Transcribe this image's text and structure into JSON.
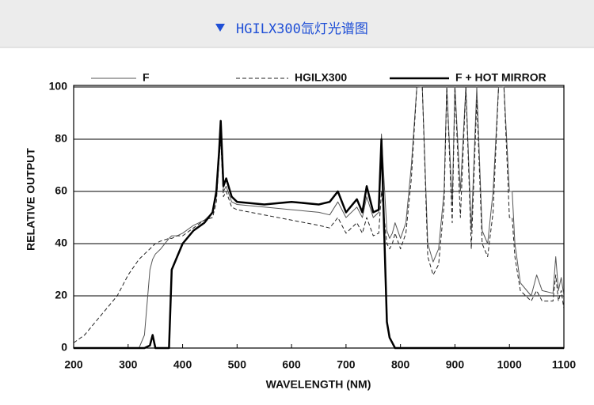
{
  "chart_data": {
    "type": "line",
    "title": "HGILX300氙灯光谱图",
    "x_label": "WAVELENGTH (NM)",
    "y_label": "RELATIVE OUTPUT",
    "x": [
      200,
      220,
      240,
      260,
      280,
      300,
      320,
      330,
      340,
      345,
      350,
      360,
      375,
      380,
      390,
      400,
      420,
      440,
      455,
      462,
      467,
      470,
      475,
      480,
      490,
      500,
      550,
      600,
      650,
      670,
      685,
      700,
      720,
      730,
      738,
      750,
      760,
      765,
      775,
      780,
      785,
      790,
      800,
      810,
      820,
      830,
      840,
      850,
      860,
      870,
      880,
      885,
      895,
      900,
      910,
      920,
      930,
      940,
      950,
      960,
      970,
      980,
      990,
      1000,
      1005,
      1010,
      1020,
      1040,
      1050,
      1060,
      1080,
      1085,
      1090,
      1095,
      1100
    ],
    "series": [
      {
        "name": "F",
        "color": "#555555",
        "line_style": "solid",
        "line_width": 1,
        "values": [
          0,
          0,
          0,
          0,
          0,
          0,
          0,
          5,
          30,
          34,
          36,
          38,
          42,
          43,
          43,
          44,
          47,
          49,
          52,
          58,
          75,
          85,
          60,
          62,
          56,
          55,
          54,
          53,
          52,
          51,
          56,
          50,
          54,
          50,
          58,
          50,
          52,
          82,
          45,
          42,
          44,
          48,
          42,
          48,
          70,
          100,
          100,
          40,
          33,
          38,
          60,
          100,
          55,
          100,
          60,
          100,
          45,
          100,
          45,
          40,
          60,
          100,
          100,
          60,
          60,
          40,
          25,
          20,
          28,
          22,
          21,
          35,
          22,
          27,
          20
        ]
      },
      {
        "name": "HGILX300",
        "color": "#222222",
        "line_style": "dashed",
        "line_width": 1,
        "values": [
          2,
          5,
          10,
          15,
          20,
          28,
          34,
          36,
          38,
          39,
          40,
          41,
          42,
          42,
          43,
          43,
          46,
          49,
          50,
          56,
          72,
          80,
          58,
          60,
          54,
          53,
          51,
          49,
          47,
          46,
          50,
          44,
          48,
          44,
          50,
          43,
          44,
          60,
          40,
          38,
          40,
          44,
          38,
          44,
          65,
          100,
          100,
          35,
          28,
          32,
          55,
          100,
          48,
          100,
          50,
          100,
          38,
          95,
          40,
          35,
          52,
          100,
          100,
          50,
          50,
          35,
          22,
          18,
          22,
          18,
          18,
          28,
          18,
          22,
          15
        ]
      },
      {
        "name": "F + HOT MIRROR",
        "color": "#000000",
        "line_style": "solid",
        "line_width": 2.5,
        "values": [
          0,
          0,
          0,
          0,
          0,
          0,
          0,
          0,
          1,
          5,
          0,
          0,
          0,
          30,
          35,
          40,
          45,
          48,
          52,
          60,
          75,
          87,
          62,
          65,
          58,
          56,
          55,
          56,
          55,
          56,
          60,
          52,
          57,
          52,
          62,
          52,
          53,
          80,
          10,
          4,
          2,
          0,
          0,
          0,
          0,
          0,
          0,
          0,
          0,
          0,
          0,
          0,
          0,
          0,
          0,
          0,
          0,
          0,
          0,
          0,
          0,
          0,
          0,
          0,
          0,
          0,
          0,
          0,
          0,
          0,
          0,
          0,
          0,
          0,
          0
        ]
      }
    ],
    "xlim": [
      200,
      1100
    ],
    "xticks": [
      200,
      300,
      400,
      500,
      600,
      700,
      800,
      900,
      1000,
      1100
    ],
    "ylim": [
      0,
      100
    ],
    "yticks": [
      0,
      20,
      40,
      60,
      80,
      100
    ],
    "grid": true
  }
}
